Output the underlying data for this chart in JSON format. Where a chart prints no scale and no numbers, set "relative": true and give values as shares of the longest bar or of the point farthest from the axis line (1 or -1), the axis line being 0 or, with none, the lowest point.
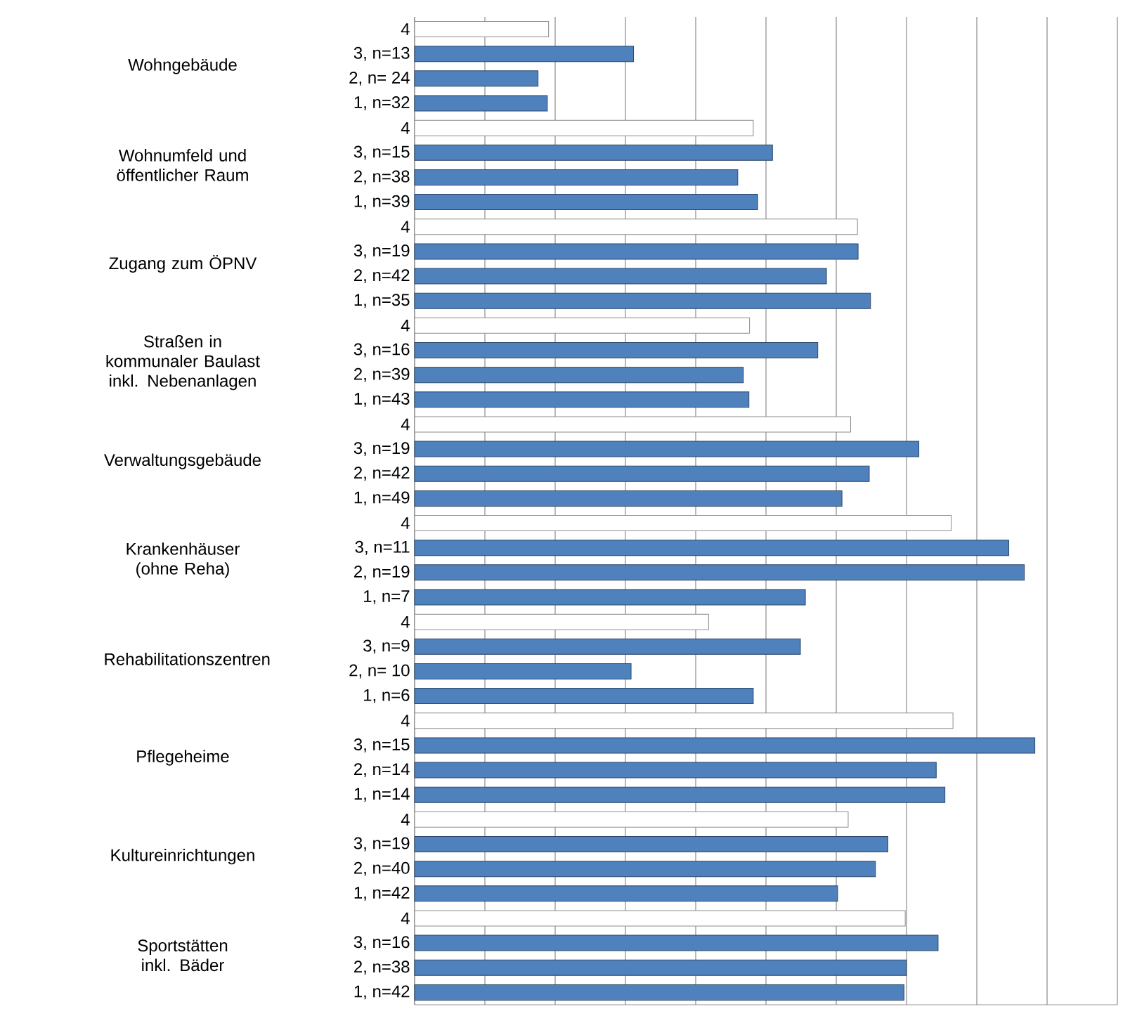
{
  "chart_data": {
    "type": "bar",
    "orientation": "horizontal",
    "relative": true,
    "grid": "x",
    "categories": [
      "4",
      "3, n=13",
      "2, n= 24",
      "1, n=32",
      "4",
      "3, n=15",
      "2, n=38",
      "1, n=39",
      "4",
      "3, n=19",
      "2, n=42",
      "1, n=35",
      "4",
      "3, n=16",
      "2, n=39",
      "1, n=43",
      "4",
      "3, n=19",
      "2, n=42",
      "1, n=49",
      "4",
      "3, n=11",
      "2, n=19",
      "1, n=7",
      "4",
      "3, n=9",
      "2, n= 10",
      "1, n=6",
      "4",
      "3, n=15",
      "2, n=14",
      "1, n=14",
      "4",
      "3, n=19",
      "2, n=40",
      "1, n=42",
      "4",
      "3, n=16",
      "2, n=38",
      "1, n=42"
    ],
    "values": [
      0.216,
      0.353,
      0.199,
      0.214,
      0.546,
      0.577,
      0.521,
      0.553,
      0.714,
      0.715,
      0.664,
      0.735,
      0.54,
      0.65,
      0.53,
      0.539,
      0.703,
      0.813,
      0.733,
      0.689,
      0.865,
      0.958,
      0.983,
      0.63,
      0.474,
      0.622,
      0.349,
      0.546,
      0.868,
      1.0,
      0.841,
      0.855,
      0.699,
      0.763,
      0.743,
      0.682,
      0.791,
      0.844,
      0.793,
      0.789
    ],
    "colors": [
      "#ffffff",
      "#4f81bd",
      "#4f81bd",
      "#4f81bd",
      "#ffffff",
      "#4f81bd",
      "#4f81bd",
      "#4f81bd",
      "#ffffff",
      "#4f81bd",
      "#4f81bd",
      "#4f81bd",
      "#ffffff",
      "#4f81bd",
      "#4f81bd",
      "#4f81bd",
      "#ffffff",
      "#4f81bd",
      "#4f81bd",
      "#4f81bd",
      "#ffffff",
      "#4f81bd",
      "#4f81bd",
      "#4f81bd",
      "#ffffff",
      "#4f81bd",
      "#4f81bd",
      "#4f81bd",
      "#ffffff",
      "#4f81bd",
      "#4f81bd",
      "#4f81bd",
      "#ffffff",
      "#4f81bd",
      "#4f81bd",
      "#4f81bd",
      "#ffffff",
      "#4f81bd",
      "#4f81bd",
      "#4f81bd"
    ],
    "annotations": [
      "Wohngebäude",
      "Wohnumfeld und öffentlicher Raum",
      "Zugang zum ÖPNV",
      "Straßen in kommunaler Baulast inkl. Nebenanlagen",
      "Verwaltungsgebäude",
      "Krankenhäuser (ohne Reha)",
      "Rehabilitationszentren",
      "Pflegeheime",
      "Kultureinrichtungen",
      "Sportstätten inkl. Bäder"
    ]
  }
}
